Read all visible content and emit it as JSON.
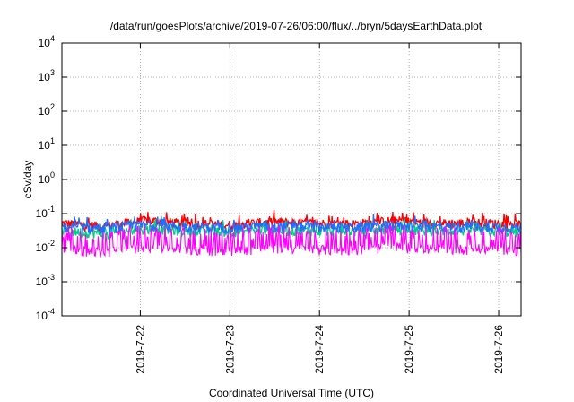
{
  "chart_data": {
    "type": "line",
    "title": "/data/run/goesPlots/archive/2019-07-26/06:00/flux/../bryn/5daysEarthData.plot",
    "xlabel": "Coordinated Universal Time (UTC)",
    "ylabel": "cSv/day",
    "yscale": "log",
    "ylim": [
      0.0001,
      10000
    ],
    "xlim": [
      "2019-07-21 03:00",
      "2019-07-26 06:00"
    ],
    "x_ticks": [
      "2019-7-22",
      "2019-7-23",
      "2019-7-24",
      "2019-7-25",
      "2019-7-26"
    ],
    "y_ticks": [
      {
        "base": "10",
        "exp": "-4",
        "value": 0.0001
      },
      {
        "base": "10",
        "exp": "-3",
        "value": 0.001
      },
      {
        "base": "10",
        "exp": "-2",
        "value": 0.01
      },
      {
        "base": "10",
        "exp": "-1",
        "value": 0.1
      },
      {
        "base": "10",
        "exp": "0",
        "value": 1
      },
      {
        "base": "10",
        "exp": "1",
        "value": 10
      },
      {
        "base": "10",
        "exp": "2",
        "value": 100
      },
      {
        "base": "10",
        "exp": "3",
        "value": 1000
      },
      {
        "base": "10",
        "exp": "4",
        "value": 10000
      }
    ],
    "grid": true,
    "series": [
      {
        "color": "#ff0000",
        "values": [
          0.05,
          0.04,
          0.06,
          0.05,
          0.045,
          0.055,
          0.05,
          0.048,
          0.06,
          0.05,
          0.052,
          0.045
        ]
      },
      {
        "color": "#00cc88",
        "values": [
          0.03,
          0.025,
          0.035,
          0.03,
          0.028,
          0.032,
          0.03,
          0.029,
          0.033,
          0.03,
          0.031,
          0.027
        ]
      },
      {
        "color": "#1f6fff",
        "values": [
          0.04,
          0.035,
          0.045,
          0.04,
          0.038,
          0.042,
          0.04,
          0.039,
          0.044,
          0.04,
          0.041,
          0.037
        ]
      },
      {
        "color": "#ff00ff",
        "values": [
          0.01,
          0.008,
          0.012,
          0.01,
          0.009,
          0.011,
          0.01,
          0.0095,
          0.012,
          0.01,
          0.0105,
          0.009
        ]
      }
    ]
  }
}
